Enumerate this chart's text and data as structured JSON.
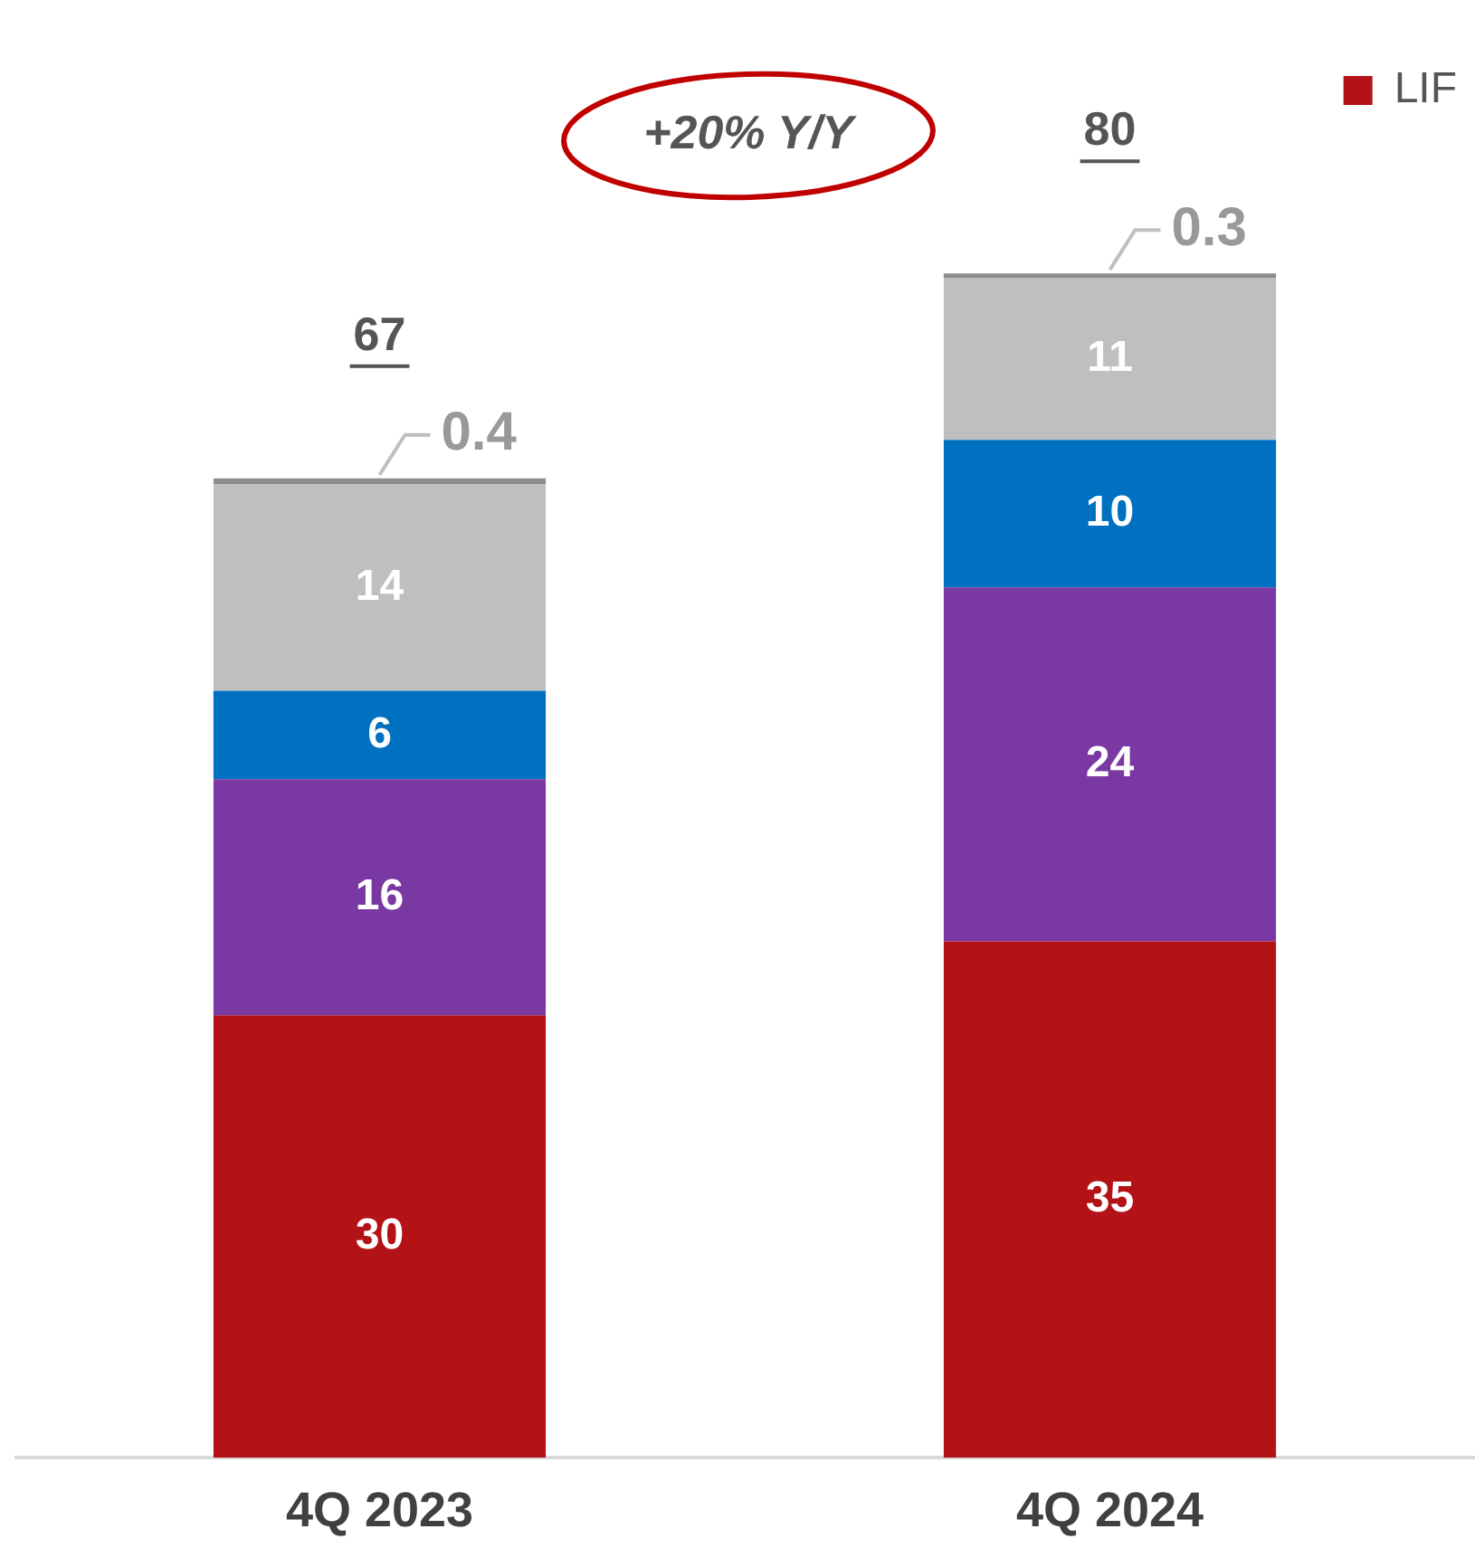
{
  "chart_data": {
    "type": "bar",
    "stacked": true,
    "categories": [
      "4Q 2023",
      "4Q 2024"
    ],
    "series": [
      {
        "name": "LIF",
        "color": "#b31217",
        "values": [
          30,
          35
        ]
      },
      {
        "color": "#7a38a3",
        "values": [
          16,
          24
        ]
      },
      {
        "color": "#0070c0",
        "values": [
          6,
          10
        ]
      },
      {
        "color": "#bfbfbf",
        "values": [
          14,
          11
        ]
      },
      {
        "color": "#8c8c8c",
        "values": [
          0.4,
          0.3
        ]
      }
    ],
    "data_labels": true,
    "totals": [
      "67",
      "80"
    ],
    "annotations": [
      "+20% Y/Y"
    ],
    "legend": "top right",
    "tick_labels": "x",
    "grid": false
  }
}
